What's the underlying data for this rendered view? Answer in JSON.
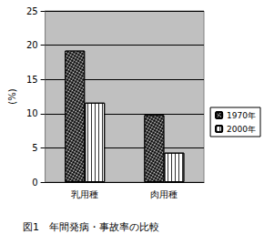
{
  "chart_data": {
    "type": "bar",
    "title": "図1　年間発病・事故率の比較",
    "y_label": "(%)",
    "categories": [
      "乳用種",
      "肉用種"
    ],
    "series": [
      {
        "name": "1970年",
        "color": "#000000",
        "values": [
          19.2,
          9.8
        ]
      },
      {
        "name": "2000年",
        "color": "#ffffff",
        "values": [
          11.6,
          4.3
        ]
      }
    ],
    "ylim": [
      0,
      25
    ],
    "yticks": [
      0,
      5,
      10,
      15,
      20,
      25
    ],
    "grid": true,
    "legend": "right"
  }
}
